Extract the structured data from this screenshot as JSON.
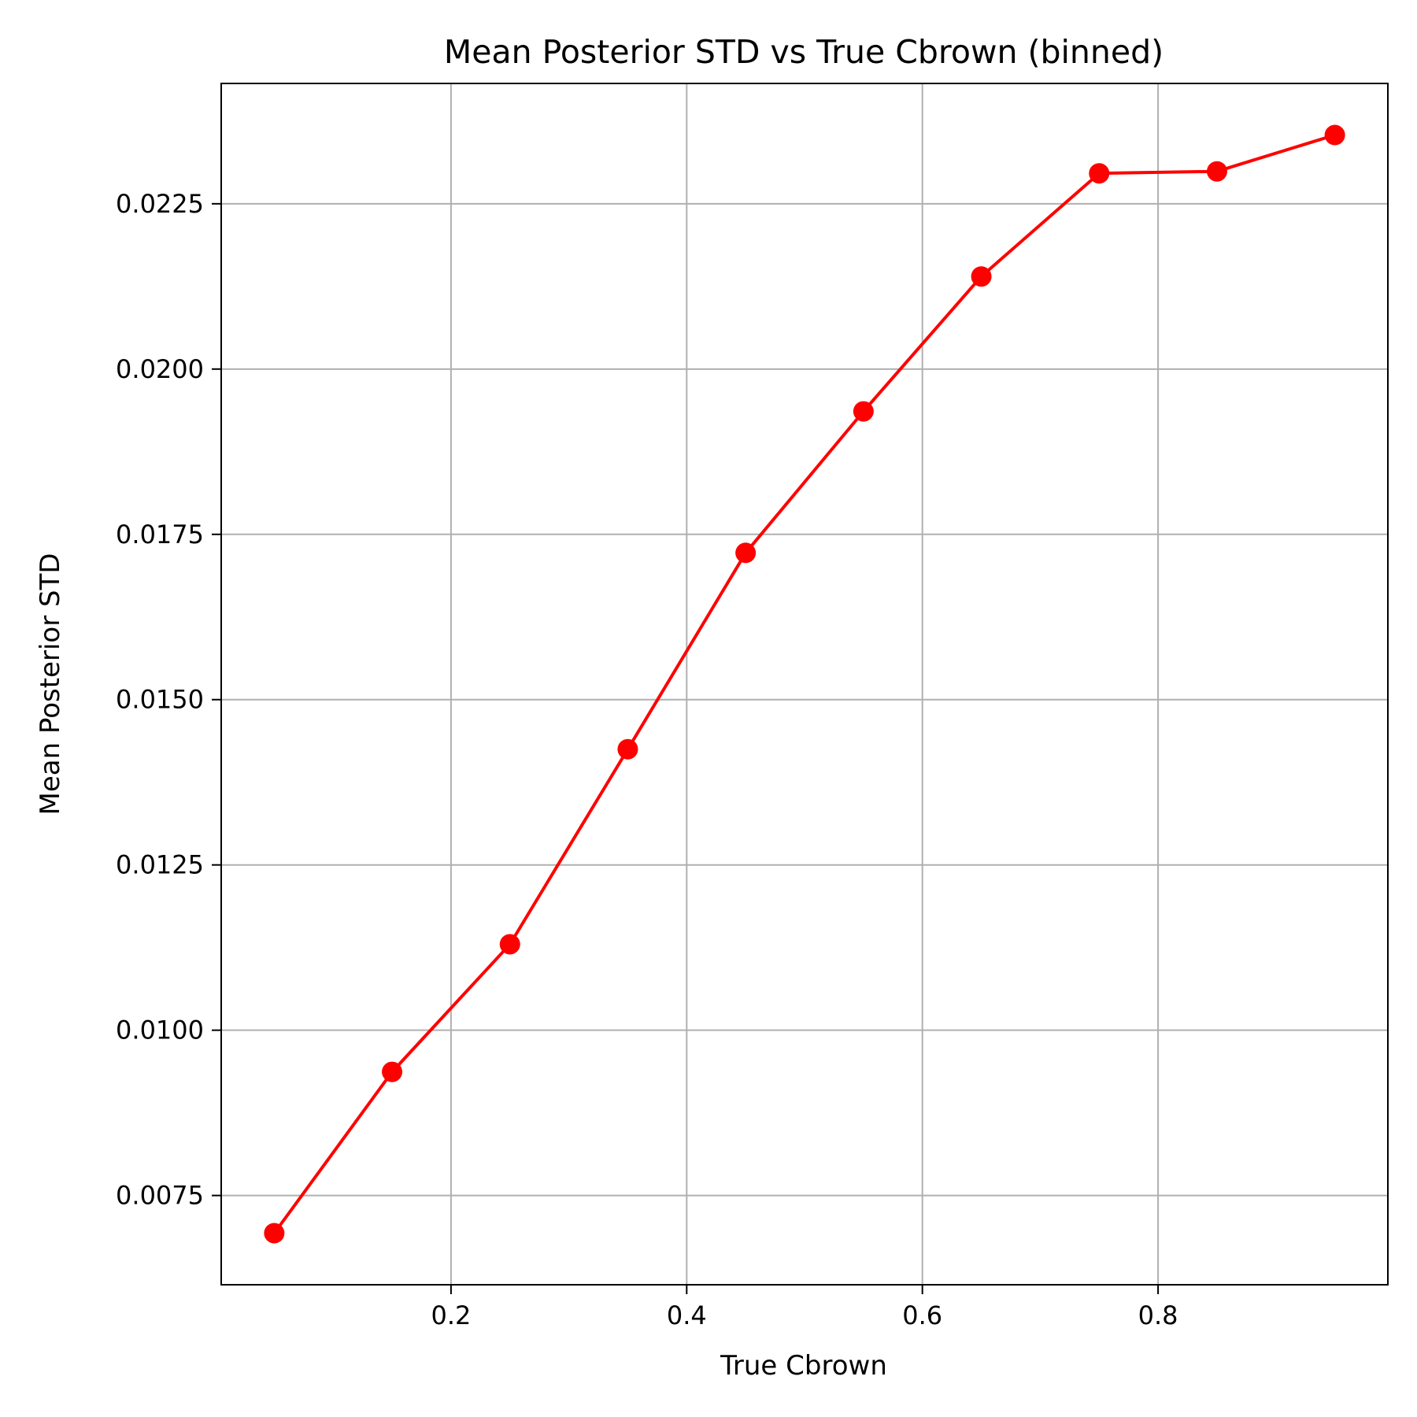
{
  "chart_data": {
    "type": "line",
    "title": "Mean Posterior STD vs True Cbrown (binned)",
    "xlabel": "True Cbrown",
    "ylabel": "Mean Posterior STD",
    "xlim": [
      0.005,
      0.995
    ],
    "ylim": [
      0.00615,
      0.02432
    ],
    "x_ticks": [
      0.2,
      0.4,
      0.6,
      0.8
    ],
    "x_tick_labels": [
      "0.2",
      "0.4",
      "0.6",
      "0.8"
    ],
    "y_ticks": [
      0.0075,
      0.01,
      0.0125,
      0.015,
      0.0175,
      0.02,
      0.0225
    ],
    "y_tick_labels": [
      "0.0075",
      "0.0100",
      "0.0125",
      "0.0150",
      "0.0175",
      "0.0200",
      "0.0225"
    ],
    "grid": true,
    "series": [
      {
        "color": "#ff0000",
        "marker": "circle",
        "x": [
          0.05,
          0.15,
          0.25,
          0.35,
          0.45,
          0.55,
          0.65,
          0.75,
          0.85,
          0.95
        ],
        "values": [
          0.00693,
          0.00937,
          0.0113,
          0.01425,
          0.01722,
          0.01936,
          0.0214,
          0.02296,
          0.02299,
          0.02354
        ]
      }
    ]
  }
}
